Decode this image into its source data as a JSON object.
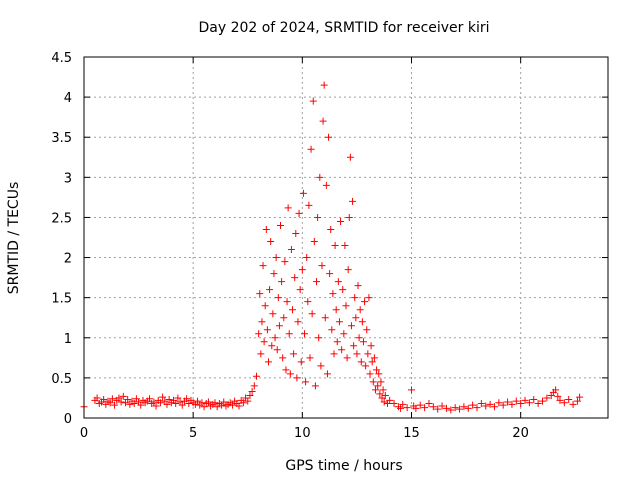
{
  "chart_data": {
    "type": "scatter",
    "title": "Day 202 of 2024, SRMTID for receiver kiri",
    "xlabel": "GPS time / hours",
    "ylabel": "SRMTID / TECUs",
    "xlim": [
      0,
      24
    ],
    "ylim": [
      0,
      4.5
    ],
    "xticks": [
      0,
      5,
      10,
      15,
      20
    ],
    "yticks": [
      0,
      0.5,
      1,
      1.5,
      2,
      2.5,
      3,
      3.5,
      4,
      4.5
    ],
    "ytick_labels": [
      "0",
      "0.5",
      "1",
      "1.5",
      "2",
      "2.5",
      "3",
      "3.5",
      "4",
      "4.5"
    ],
    "grid": true,
    "marker": "+",
    "color": "#ff0000",
    "series": [
      {
        "name": "SRMTID",
        "points": [
          [
            0.0,
            0.14
          ],
          [
            0.5,
            0.22
          ],
          [
            0.6,
            0.25
          ],
          [
            0.7,
            0.18
          ],
          [
            0.8,
            0.2
          ],
          [
            0.9,
            0.23
          ],
          [
            1.0,
            0.17
          ],
          [
            1.1,
            0.21
          ],
          [
            1.2,
            0.19
          ],
          [
            1.3,
            0.24
          ],
          [
            1.4,
            0.16
          ],
          [
            1.5,
            0.22
          ],
          [
            1.6,
            0.25
          ],
          [
            1.7,
            0.2
          ],
          [
            1.8,
            0.27
          ],
          [
            1.9,
            0.19
          ],
          [
            2.0,
            0.23
          ],
          [
            2.1,
            0.17
          ],
          [
            2.2,
            0.21
          ],
          [
            2.3,
            0.18
          ],
          [
            2.4,
            0.24
          ],
          [
            2.5,
            0.2
          ],
          [
            2.6,
            0.16
          ],
          [
            2.7,
            0.22
          ],
          [
            2.8,
            0.19
          ],
          [
            2.9,
            0.21
          ],
          [
            3.0,
            0.24
          ],
          [
            3.1,
            0.18
          ],
          [
            3.2,
            0.2
          ],
          [
            3.3,
            0.15
          ],
          [
            3.4,
            0.22
          ],
          [
            3.5,
            0.19
          ],
          [
            3.6,
            0.26
          ],
          [
            3.7,
            0.21
          ],
          [
            3.8,
            0.17
          ],
          [
            3.9,
            0.23
          ],
          [
            4.0,
            0.19
          ],
          [
            4.1,
            0.22
          ],
          [
            4.2,
            0.18
          ],
          [
            4.3,
            0.25
          ],
          [
            4.4,
            0.2
          ],
          [
            4.5,
            0.16
          ],
          [
            4.6,
            0.21
          ],
          [
            4.7,
            0.24
          ],
          [
            4.8,
            0.18
          ],
          [
            4.9,
            0.22
          ],
          [
            5.0,
            0.19
          ],
          [
            5.1,
            0.17
          ],
          [
            5.2,
            0.21
          ],
          [
            5.3,
            0.16
          ],
          [
            5.4,
            0.19
          ],
          [
            5.5,
            0.14
          ],
          [
            5.6,
            0.18
          ],
          [
            5.7,
            0.2
          ],
          [
            5.8,
            0.15
          ],
          [
            5.9,
            0.17
          ],
          [
            6.0,
            0.19
          ],
          [
            6.1,
            0.14
          ],
          [
            6.2,
            0.18
          ],
          [
            6.3,
            0.16
          ],
          [
            6.4,
            0.2
          ],
          [
            6.5,
            0.15
          ],
          [
            6.6,
            0.17
          ],
          [
            6.7,
            0.19
          ],
          [
            6.8,
            0.16
          ],
          [
            6.9,
            0.21
          ],
          [
            7.0,
            0.18
          ],
          [
            7.1,
            0.15
          ],
          [
            7.2,
            0.22
          ],
          [
            7.3,
            0.19
          ],
          [
            7.4,
            0.25
          ],
          [
            7.5,
            0.21
          ],
          [
            7.6,
            0.28
          ],
          [
            7.7,
            0.33
          ],
          [
            7.8,
            0.4
          ],
          [
            7.9,
            0.52
          ],
          [
            8.0,
            1.05
          ],
          [
            8.05,
            1.55
          ],
          [
            8.1,
            0.8
          ],
          [
            8.15,
            1.2
          ],
          [
            8.2,
            1.9
          ],
          [
            8.25,
            0.95
          ],
          [
            8.3,
            1.4
          ],
          [
            8.35,
            2.35
          ],
          [
            8.4,
            1.1
          ],
          [
            8.45,
            0.7
          ],
          [
            8.5,
            1.6
          ],
          [
            8.55,
            2.2
          ],
          [
            8.6,
            0.9
          ],
          [
            8.65,
            1.3
          ],
          [
            8.7,
            1.8
          ],
          [
            8.75,
            1.0
          ],
          [
            8.8,
            2.0
          ],
          [
            8.85,
            0.85
          ],
          [
            8.9,
            1.5
          ],
          [
            8.95,
            1.15
          ],
          [
            9.0,
            2.4
          ],
          [
            9.05,
            1.7
          ],
          [
            9.1,
            0.75
          ],
          [
            9.15,
            1.25
          ],
          [
            9.2,
            1.95
          ],
          [
            9.25,
            0.6
          ],
          [
            9.3,
            1.45
          ],
          [
            9.35,
            2.62
          ],
          [
            9.4,
            1.05
          ],
          [
            9.45,
            0.55
          ],
          [
            9.5,
            2.1
          ],
          [
            9.55,
            1.35
          ],
          [
            9.6,
            0.8
          ],
          [
            9.65,
            1.75
          ],
          [
            9.7,
            2.3
          ],
          [
            9.75,
            0.5
          ],
          [
            9.8,
            1.2
          ],
          [
            9.85,
            2.55
          ],
          [
            9.9,
            1.6
          ],
          [
            9.95,
            0.7
          ],
          [
            10.0,
            1.85
          ],
          [
            10.05,
            2.8
          ],
          [
            10.1,
            1.05
          ],
          [
            10.15,
            0.45
          ],
          [
            10.2,
            2.0
          ],
          [
            10.25,
            1.45
          ],
          [
            10.3,
            2.65
          ],
          [
            10.35,
            0.75
          ],
          [
            10.4,
            3.35
          ],
          [
            10.45,
            1.3
          ],
          [
            10.5,
            3.95
          ],
          [
            10.55,
            2.2
          ],
          [
            10.6,
            0.4
          ],
          [
            10.65,
            1.7
          ],
          [
            10.7,
            2.5
          ],
          [
            10.75,
            1.0
          ],
          [
            10.8,
            3.0
          ],
          [
            10.85,
            0.65
          ],
          [
            10.9,
            1.9
          ],
          [
            10.95,
            3.7
          ],
          [
            11.0,
            4.15
          ],
          [
            11.05,
            1.25
          ],
          [
            11.1,
            2.9
          ],
          [
            11.15,
            0.55
          ],
          [
            11.2,
            3.5
          ],
          [
            11.25,
            1.8
          ],
          [
            11.3,
            2.35
          ],
          [
            11.35,
            1.1
          ],
          [
            11.4,
            1.55
          ],
          [
            11.45,
            0.8
          ],
          [
            11.5,
            2.15
          ],
          [
            11.55,
            1.35
          ],
          [
            11.6,
            0.95
          ],
          [
            11.65,
            1.7
          ],
          [
            11.7,
            1.2
          ],
          [
            11.75,
            2.45
          ],
          [
            11.8,
            0.85
          ],
          [
            11.85,
            1.6
          ],
          [
            11.9,
            1.05
          ],
          [
            11.95,
            2.15
          ],
          [
            12.0,
            1.4
          ],
          [
            12.05,
            0.75
          ],
          [
            12.1,
            1.85
          ],
          [
            12.15,
            2.5
          ],
          [
            12.2,
            3.25
          ],
          [
            12.25,
            1.15
          ],
          [
            12.3,
            2.7
          ],
          [
            12.35,
            0.9
          ],
          [
            12.4,
            1.5
          ],
          [
            12.45,
            1.25
          ],
          [
            12.5,
            0.8
          ],
          [
            12.55,
            1.65
          ],
          [
            12.6,
            1.0
          ],
          [
            12.65,
            1.35
          ],
          [
            12.7,
            0.7
          ],
          [
            12.75,
            1.2
          ],
          [
            12.8,
            0.95
          ],
          [
            12.85,
            1.45
          ],
          [
            12.9,
            0.65
          ],
          [
            12.95,
            1.1
          ],
          [
            13.0,
            0.8
          ],
          [
            13.05,
            1.5
          ],
          [
            13.1,
            0.55
          ],
          [
            13.15,
            0.9
          ],
          [
            13.2,
            0.7
          ],
          [
            13.25,
            0.45
          ],
          [
            13.3,
            0.75
          ],
          [
            13.35,
            0.35
          ],
          [
            13.4,
            0.6
          ],
          [
            13.45,
            0.4
          ],
          [
            13.5,
            0.55
          ],
          [
            13.55,
            0.3
          ],
          [
            13.6,
            0.45
          ],
          [
            13.65,
            0.25
          ],
          [
            13.7,
            0.35
          ],
          [
            13.75,
            0.2
          ],
          [
            13.8,
            0.28
          ],
          [
            13.9,
            0.18
          ],
          [
            14.0,
            0.22
          ],
          [
            14.2,
            0.18
          ],
          [
            14.4,
            0.14
          ],
          [
            14.5,
            0.12
          ],
          [
            14.6,
            0.17
          ],
          [
            14.8,
            0.13
          ],
          [
            15.0,
            0.35
          ],
          [
            15.1,
            0.15
          ],
          [
            15.2,
            0.12
          ],
          [
            15.4,
            0.16
          ],
          [
            15.6,
            0.13
          ],
          [
            15.8,
            0.18
          ],
          [
            16.0,
            0.14
          ],
          [
            16.2,
            0.11
          ],
          [
            16.4,
            0.15
          ],
          [
            16.6,
            0.12
          ],
          [
            16.8,
            0.1
          ],
          [
            17.0,
            0.13
          ],
          [
            17.2,
            0.11
          ],
          [
            17.4,
            0.14
          ],
          [
            17.6,
            0.12
          ],
          [
            17.8,
            0.16
          ],
          [
            18.0,
            0.13
          ],
          [
            18.2,
            0.18
          ],
          [
            18.4,
            0.15
          ],
          [
            18.6,
            0.17
          ],
          [
            18.8,
            0.14
          ],
          [
            19.0,
            0.19
          ],
          [
            19.2,
            0.16
          ],
          [
            19.4,
            0.2
          ],
          [
            19.6,
            0.17
          ],
          [
            19.8,
            0.21
          ],
          [
            20.0,
            0.18
          ],
          [
            20.2,
            0.22
          ],
          [
            20.4,
            0.19
          ],
          [
            20.6,
            0.23
          ],
          [
            20.8,
            0.18
          ],
          [
            21.0,
            0.21
          ],
          [
            21.2,
            0.25
          ],
          [
            21.4,
            0.28
          ],
          [
            21.5,
            0.32
          ],
          [
            21.6,
            0.35
          ],
          [
            21.7,
            0.27
          ],
          [
            21.8,
            0.22
          ],
          [
            22.0,
            0.19
          ],
          [
            22.2,
            0.23
          ],
          [
            22.4,
            0.17
          ],
          [
            22.6,
            0.21
          ],
          [
            22.7,
            0.26
          ]
        ]
      }
    ]
  }
}
